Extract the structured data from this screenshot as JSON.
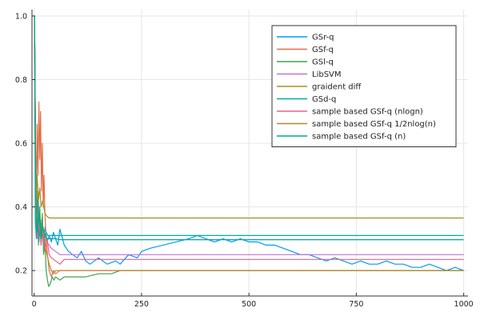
{
  "chart_data": {
    "type": "line",
    "title": "",
    "xlabel": "",
    "ylabel": "",
    "xlim": [
      -5,
      1010
    ],
    "ylim": [
      0.12,
      1.02
    ],
    "xticks": [
      0,
      250,
      500,
      750,
      1000
    ],
    "yticks": [
      0.2,
      0.4,
      0.6,
      0.8,
      1.0
    ],
    "xtick_labels": [
      "0",
      "250",
      "500",
      "750",
      "1000"
    ],
    "ytick_labels": [
      "0.2",
      "0.4",
      "0.6",
      "0.8",
      "1.0"
    ],
    "grid": true,
    "legend_position": "top-right",
    "series": [
      {
        "name": "GSr-q",
        "color": "#009AFA",
        "x": [
          1,
          3,
          6,
          9,
          12,
          15,
          18,
          22,
          26,
          30,
          35,
          40,
          45,
          50,
          55,
          60,
          70,
          80,
          90,
          100,
          110,
          120,
          130,
          150,
          170,
          190,
          200,
          220,
          240,
          250,
          270,
          300,
          330,
          360,
          380,
          400,
          420,
          440,
          460,
          480,
          500,
          520,
          540,
          560,
          580,
          600,
          620,
          640,
          660,
          680,
          700,
          720,
          740,
          760,
          780,
          800,
          820,
          840,
          860,
          880,
          900,
          920,
          940,
          960,
          980,
          1000
        ],
        "y": [
          1.0,
          0.55,
          0.38,
          0.45,
          0.32,
          0.36,
          0.31,
          0.3,
          0.34,
          0.29,
          0.31,
          0.29,
          0.32,
          0.3,
          0.28,
          0.33,
          0.28,
          0.26,
          0.25,
          0.24,
          0.26,
          0.23,
          0.22,
          0.24,
          0.22,
          0.23,
          0.22,
          0.25,
          0.24,
          0.26,
          0.27,
          0.28,
          0.29,
          0.3,
          0.31,
          0.3,
          0.29,
          0.3,
          0.29,
          0.3,
          0.29,
          0.29,
          0.28,
          0.28,
          0.27,
          0.26,
          0.25,
          0.25,
          0.24,
          0.23,
          0.24,
          0.23,
          0.22,
          0.23,
          0.22,
          0.22,
          0.23,
          0.22,
          0.22,
          0.21,
          0.21,
          0.22,
          0.21,
          0.2,
          0.21,
          0.2
        ]
      },
      {
        "name": "GSf-q",
        "color": "#E36F47",
        "x": [
          1,
          3,
          5,
          7,
          9,
          11,
          13,
          15,
          17,
          19,
          21,
          23,
          25,
          27,
          29,
          31,
          35,
          40,
          45,
          50,
          60,
          80,
          100,
          150,
          200,
          300,
          500,
          700,
          1000
        ],
        "y": [
          1.0,
          0.62,
          0.4,
          0.66,
          0.5,
          0.73,
          0.55,
          0.7,
          0.45,
          0.6,
          0.4,
          0.5,
          0.38,
          0.32,
          0.28,
          0.25,
          0.2,
          0.18,
          0.2,
          0.19,
          0.2,
          0.2,
          0.2,
          0.2,
          0.2,
          0.2,
          0.2,
          0.2,
          0.2
        ]
      },
      {
        "name": "GSl-q",
        "color": "#3EA44E",
        "x": [
          1,
          3,
          5,
          8,
          10,
          13,
          16,
          19,
          22,
          25,
          28,
          31,
          34,
          38,
          42,
          46,
          50,
          60,
          70,
          80,
          100,
          120,
          150,
          180,
          200,
          220,
          250,
          300,
          400,
          500,
          700,
          1000
        ],
        "y": [
          1.0,
          0.5,
          0.32,
          0.45,
          0.28,
          0.4,
          0.3,
          0.38,
          0.25,
          0.3,
          0.2,
          0.17,
          0.15,
          0.16,
          0.18,
          0.17,
          0.18,
          0.17,
          0.18,
          0.18,
          0.18,
          0.18,
          0.19,
          0.19,
          0.2,
          0.2,
          0.2,
          0.2,
          0.2,
          0.2,
          0.2,
          0.2
        ]
      },
      {
        "name": "LibSVM",
        "color": "#C271D2",
        "x": [
          1,
          4,
          8,
          12,
          16,
          20,
          25,
          30,
          35,
          40,
          50,
          60,
          80,
          100,
          200,
          400,
          600,
          800,
          1000
        ],
        "y": [
          1.0,
          0.4,
          0.35,
          0.33,
          0.32,
          0.31,
          0.3,
          0.29,
          0.28,
          0.27,
          0.26,
          0.25,
          0.25,
          0.25,
          0.25,
          0.25,
          0.25,
          0.25,
          0.25
        ]
      },
      {
        "name": "graident diff",
        "color": "#AC8D18",
        "x": [
          1,
          3,
          5,
          7,
          10,
          13,
          16,
          20,
          25,
          30,
          35,
          40,
          60,
          100,
          300,
          600,
          1000
        ],
        "y": [
          1.0,
          0.5,
          0.44,
          0.5,
          0.42,
          0.46,
          0.4,
          0.42,
          0.38,
          0.37,
          0.365,
          0.365,
          0.365,
          0.365,
          0.365,
          0.365,
          0.365
        ]
      },
      {
        "name": "GSd-q",
        "color": "#00A9AD",
        "x": [
          1,
          3,
          5,
          8,
          11,
          14,
          17,
          20,
          24,
          28,
          32,
          36,
          40,
          50,
          60,
          100,
          300,
          600,
          1000
        ],
        "y": [
          1.0,
          0.35,
          0.3,
          0.36,
          0.29,
          0.34,
          0.3,
          0.33,
          0.3,
          0.32,
          0.31,
          0.31,
          0.31,
          0.31,
          0.31,
          0.31,
          0.31,
          0.31,
          0.31
        ]
      },
      {
        "name": "sample based GSf-q (nlogn)",
        "color": "#ED5D92",
        "x": [
          1,
          4,
          8,
          12,
          16,
          20,
          25,
          30,
          35,
          40,
          50,
          60,
          70,
          80,
          100,
          300,
          600,
          1000
        ],
        "y": [
          1.0,
          0.45,
          0.3,
          0.36,
          0.28,
          0.32,
          0.26,
          0.3,
          0.25,
          0.24,
          0.23,
          0.22,
          0.235,
          0.235,
          0.235,
          0.235,
          0.235,
          0.235
        ]
      },
      {
        "name": "sample based GSf-q 1/2nlog(n)",
        "color": "#C68225",
        "x": [
          1,
          4,
          8,
          12,
          16,
          20,
          25,
          30,
          35,
          40,
          45,
          50,
          60,
          100,
          300,
          600,
          1000
        ],
        "y": [
          1.0,
          0.4,
          0.33,
          0.38,
          0.3,
          0.33,
          0.28,
          0.25,
          0.22,
          0.2,
          0.19,
          0.2,
          0.2,
          0.2,
          0.2,
          0.2,
          0.2
        ]
      },
      {
        "name": "sample based GSf-q (n)",
        "color": "#00A98D",
        "x": [
          1,
          4,
          8,
          12,
          16,
          20,
          25,
          30,
          35,
          40,
          50,
          60,
          100,
          300,
          600,
          1000
        ],
        "y": [
          1.0,
          0.42,
          0.32,
          0.38,
          0.3,
          0.34,
          0.31,
          0.3,
          0.3,
          0.3,
          0.3,
          0.297,
          0.297,
          0.297,
          0.297,
          0.297
        ]
      }
    ]
  }
}
